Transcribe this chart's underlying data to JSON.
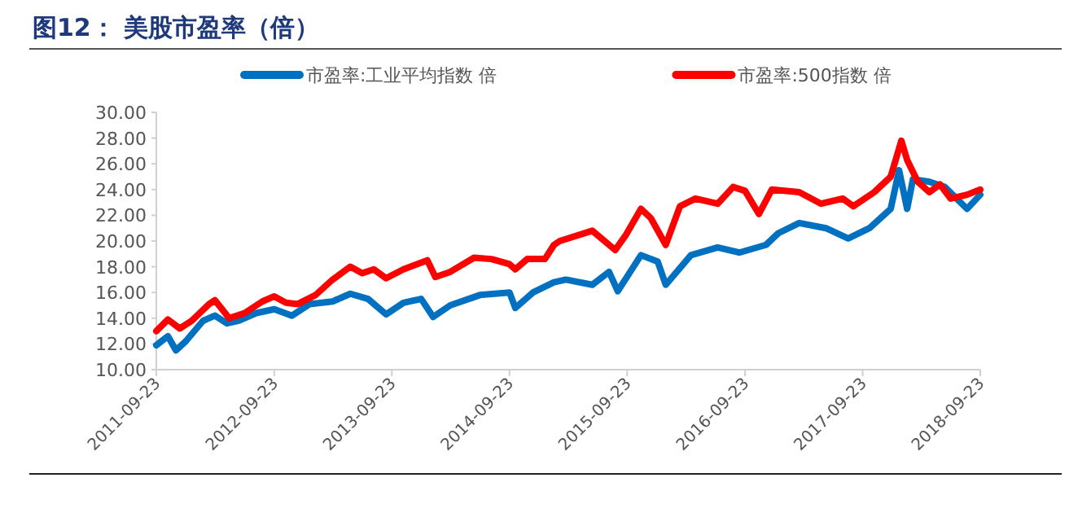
{
  "chart_data": {
    "type": "line",
    "title": "图12：  美股市盈率（倍）",
    "legend": "top",
    "line_style": "solid",
    "marker": "none",
    "grid": false,
    "ylim": [
      10,
      30
    ],
    "yticks": [
      {
        "value": 10,
        "label": "10.00"
      },
      {
        "value": 12,
        "label": "12.00"
      },
      {
        "value": 14,
        "label": "14.00"
      },
      {
        "value": 16,
        "label": "16.00"
      },
      {
        "value": 18,
        "label": "18.00"
      },
      {
        "value": 20,
        "label": "20.00"
      },
      {
        "value": 22,
        "label": "22.00"
      },
      {
        "value": 24,
        "label": "24.00"
      },
      {
        "value": 26,
        "label": "26.00"
      },
      {
        "value": 28,
        "label": "28.00"
      },
      {
        "value": 30,
        "label": "30.00"
      }
    ],
    "xlim": [
      "2011-09-23",
      "2018-09-23"
    ],
    "xticks": [
      "2011-09-23",
      "2012-09-23",
      "2013-09-23",
      "2014-09-23",
      "2015-09-23",
      "2016-09-23",
      "2017-09-23",
      "2018-09-23"
    ],
    "series": [
      {
        "name": "市盈率:工业平均指数 倍",
        "color": "#0070c0",
        "x": [
          "2011-09-23",
          "2011-10-29",
          "2011-11-23",
          "2011-12-23",
          "2012-02-15",
          "2012-03-23",
          "2012-04-29",
          "2012-06-05",
          "2012-07-29",
          "2012-09-23",
          "2012-11-17",
          "2013-01-11",
          "2013-03-23",
          "2013-05-17",
          "2013-07-11",
          "2013-09-05",
          "2013-10-29",
          "2013-12-23",
          "2014-01-29",
          "2014-03-23",
          "2014-06-23",
          "2014-09-23",
          "2014-10-11",
          "2014-12-05",
          "2015-02-08",
          "2015-03-17",
          "2015-06-07",
          "2015-07-29",
          "2015-08-25",
          "2015-11-05",
          "2015-12-27",
          "2016-01-21",
          "2016-04-08",
          "2016-06-30",
          "2016-09-05",
          "2016-11-27",
          "2017-01-04",
          "2017-03-10",
          "2017-06-01",
          "2017-08-09",
          "2017-10-14",
          "2017-12-19",
          "2018-01-14",
          "2018-02-08",
          "2018-02-26",
          "2018-04-18",
          "2018-06-05",
          "2018-08-13",
          "2018-09-23"
        ],
        "values": [
          11.9,
          12.6,
          11.5,
          12.2,
          13.8,
          14.2,
          13.6,
          13.8,
          14.4,
          14.7,
          14.2,
          15.1,
          15.3,
          15.9,
          15.5,
          14.3,
          15.2,
          15.5,
          14.1,
          15.0,
          15.8,
          16.0,
          14.8,
          16.0,
          16.8,
          17.0,
          16.6,
          17.6,
          16.1,
          18.9,
          18.4,
          16.6,
          18.9,
          19.5,
          19.1,
          19.7,
          20.6,
          21.4,
          21.0,
          20.2,
          21.0,
          22.5,
          25.5,
          22.5,
          24.8,
          24.6,
          24.2,
          22.5,
          23.6
        ]
      },
      {
        "name": "市盈率:500指数 倍",
        "color": "#ff0000",
        "x": [
          "2011-09-23",
          "2011-10-29",
          "2011-12-05",
          "2012-01-11",
          "2012-03-05",
          "2012-03-23",
          "2012-04-11",
          "2012-05-06",
          "2012-06-23",
          "2012-08-17",
          "2012-09-23",
          "2012-10-29",
          "2012-12-05",
          "2013-01-29",
          "2013-03-23",
          "2013-05-17",
          "2013-06-23",
          "2013-07-29",
          "2013-09-05",
          "2013-10-29",
          "2014-01-11",
          "2014-02-05",
          "2014-03-23",
          "2014-06-05",
          "2014-07-29",
          "2014-09-23",
          "2014-10-11",
          "2014-11-17",
          "2015-01-11",
          "2015-02-08",
          "2015-02-26",
          "2015-06-07",
          "2015-08-17",
          "2015-09-20",
          "2015-11-05",
          "2015-12-05",
          "2016-01-21",
          "2016-03-05",
          "2016-04-22",
          "2016-06-30",
          "2016-08-17",
          "2016-09-23",
          "2016-11-05",
          "2016-12-15",
          "2017-03-10",
          "2017-05-17",
          "2017-07-23",
          "2017-08-25",
          "2017-10-29",
          "2017-12-19",
          "2018-01-21",
          "2018-02-08",
          "2018-03-13",
          "2018-04-18",
          "2018-05-21",
          "2018-06-23",
          "2018-08-13",
          "2018-09-23"
        ],
        "values": [
          13.0,
          13.9,
          13.2,
          13.8,
          15.1,
          15.4,
          14.8,
          14.0,
          14.4,
          15.3,
          15.7,
          15.2,
          15.1,
          15.8,
          17.0,
          18.0,
          17.5,
          17.8,
          17.1,
          17.8,
          18.5,
          17.2,
          17.6,
          18.7,
          18.6,
          18.2,
          17.8,
          18.6,
          18.6,
          19.7,
          20.0,
          20.8,
          19.3,
          20.5,
          22.5,
          21.8,
          19.7,
          22.7,
          23.3,
          22.9,
          24.2,
          23.9,
          22.1,
          24.0,
          23.8,
          22.9,
          23.3,
          22.7,
          23.8,
          25.0,
          27.8,
          26.3,
          24.6,
          23.8,
          24.4,
          23.3,
          23.6,
          24.0
        ]
      }
    ]
  }
}
